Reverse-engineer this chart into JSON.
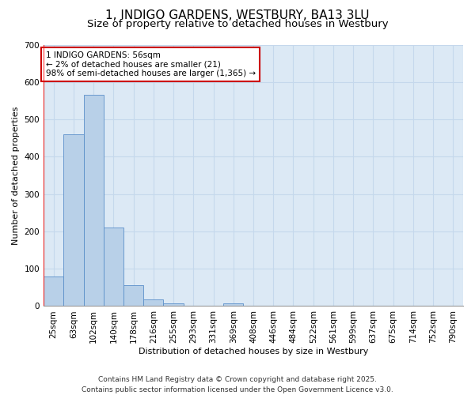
{
  "title": "1, INDIGO GARDENS, WESTBURY, BA13 3LU",
  "subtitle": "Size of property relative to detached houses in Westbury",
  "xlabel": "Distribution of detached houses by size in Westbury",
  "ylabel": "Number of detached properties",
  "categories": [
    "25sqm",
    "63sqm",
    "102sqm",
    "140sqm",
    "178sqm",
    "216sqm",
    "255sqm",
    "293sqm",
    "331sqm",
    "369sqm",
    "408sqm",
    "446sqm",
    "484sqm",
    "522sqm",
    "561sqm",
    "599sqm",
    "637sqm",
    "675sqm",
    "714sqm",
    "752sqm",
    "790sqm"
  ],
  "values": [
    80,
    460,
    565,
    210,
    55,
    18,
    8,
    0,
    0,
    8,
    0,
    0,
    0,
    0,
    0,
    0,
    0,
    0,
    0,
    0,
    0
  ],
  "bar_color": "#b8d0e8",
  "bar_edge_color": "#5b8fc9",
  "grid_color": "#c5d8ec",
  "background_color": "#dce9f5",
  "annotation_box_text": "1 INDIGO GARDENS: 56sqm\n← 2% of detached houses are smaller (21)\n98% of semi-detached houses are larger (1,365) →",
  "annotation_box_color": "#cc0000",
  "ylim": [
    0,
    700
  ],
  "yticks": [
    0,
    100,
    200,
    300,
    400,
    500,
    600,
    700
  ],
  "footer": "Contains HM Land Registry data © Crown copyright and database right 2025.\nContains public sector information licensed under the Open Government Licence v3.0.",
  "title_fontsize": 11,
  "subtitle_fontsize": 9.5,
  "axis_label_fontsize": 8,
  "tick_fontsize": 7.5,
  "annotation_fontsize": 7.5,
  "footer_fontsize": 6.5
}
